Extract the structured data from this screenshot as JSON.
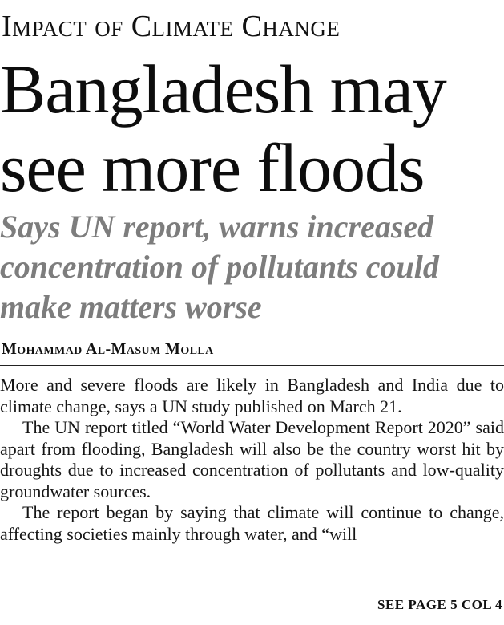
{
  "kicker": "Impact of Climate Change",
  "headline": {
    "line1": "Bangladesh may",
    "line2": "see more floods"
  },
  "subhead": {
    "line1": "Says UN report, warns increased",
    "line2": "concentration of pollutants could",
    "line3": "make matters worse"
  },
  "byline": "Mohammad Al-Masum Molla",
  "body": {
    "paragraph1": "More and severe floods are likely in Bangladesh and India due to climate change, says a UN study published on March 21.",
    "paragraph2": "The UN report titled “World Water Development Report 2020” said apart from flooding, Bangladesh will also be the country worst hit by droughts due to increased concentration of pollutants and low-quality groundwater sources.",
    "paragraph3": "The report began by saying that climate will continue to change, affecting societies mainly through water, and “will"
  },
  "jump": "SEE PAGE 5 COL 4"
}
